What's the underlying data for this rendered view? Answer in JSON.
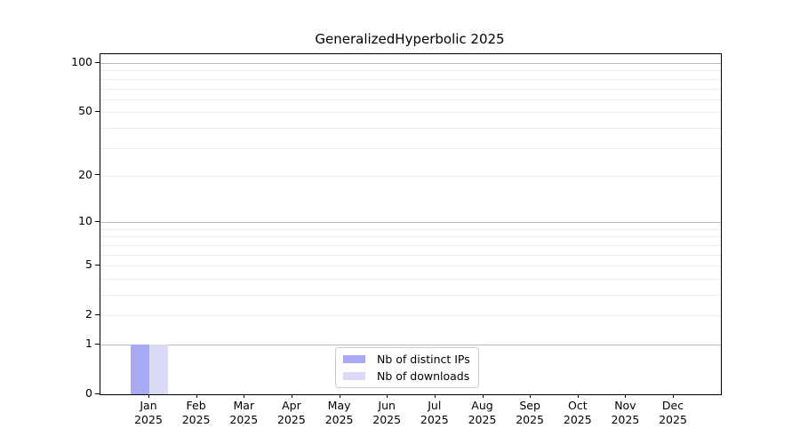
{
  "figure": {
    "background": "#ffffff"
  },
  "chart_data": {
    "type": "bar",
    "title": "GeneralizedHyperbolic 2025",
    "categories": [
      "Jan 2025",
      "Feb 2025",
      "Mar 2025",
      "Apr 2025",
      "May 2025",
      "Jun 2025",
      "Jul 2025",
      "Aug 2025",
      "Sep 2025",
      "Oct 2025",
      "Nov 2025",
      "Dec 2025"
    ],
    "x_tick_labels": [
      {
        "month": "Jan",
        "year": "2025"
      },
      {
        "month": "Feb",
        "year": "2025"
      },
      {
        "month": "Mar",
        "year": "2025"
      },
      {
        "month": "Apr",
        "year": "2025"
      },
      {
        "month": "May",
        "year": "2025"
      },
      {
        "month": "Jun",
        "year": "2025"
      },
      {
        "month": "Jul",
        "year": "2025"
      },
      {
        "month": "Aug",
        "year": "2025"
      },
      {
        "month": "Sep",
        "year": "2025"
      },
      {
        "month": "Oct",
        "year": "2025"
      },
      {
        "month": "Nov",
        "year": "2025"
      },
      {
        "month": "Dec",
        "year": "2025"
      }
    ],
    "series": [
      {
        "name": "Nb of distinct IPs",
        "color": "#a9a9f4",
        "values": [
          1,
          0,
          0,
          0,
          0,
          0,
          0,
          0,
          0,
          0,
          0,
          0
        ]
      },
      {
        "name": "Nb of downloads",
        "color": "#dadaf7",
        "values": [
          1,
          0,
          0,
          0,
          0,
          0,
          0,
          0,
          0,
          0,
          0,
          0
        ]
      }
    ],
    "y_axis": {
      "scale": "log1p",
      "tick_values": [
        0,
        1,
        2,
        5,
        10,
        20,
        50,
        100
      ],
      "tick_labels": [
        "0",
        "1",
        "2",
        "5",
        "10",
        "20",
        "50",
        "100"
      ],
      "major_gridline_values": [
        1,
        10,
        100
      ],
      "minor_gridline_values": [
        2,
        3,
        4,
        5,
        6,
        7,
        8,
        9,
        20,
        30,
        40,
        50,
        60,
        70,
        80,
        90
      ],
      "ylim": [
        0,
        113
      ]
    },
    "grid": "horizontal",
    "legend_position": "lower center"
  }
}
